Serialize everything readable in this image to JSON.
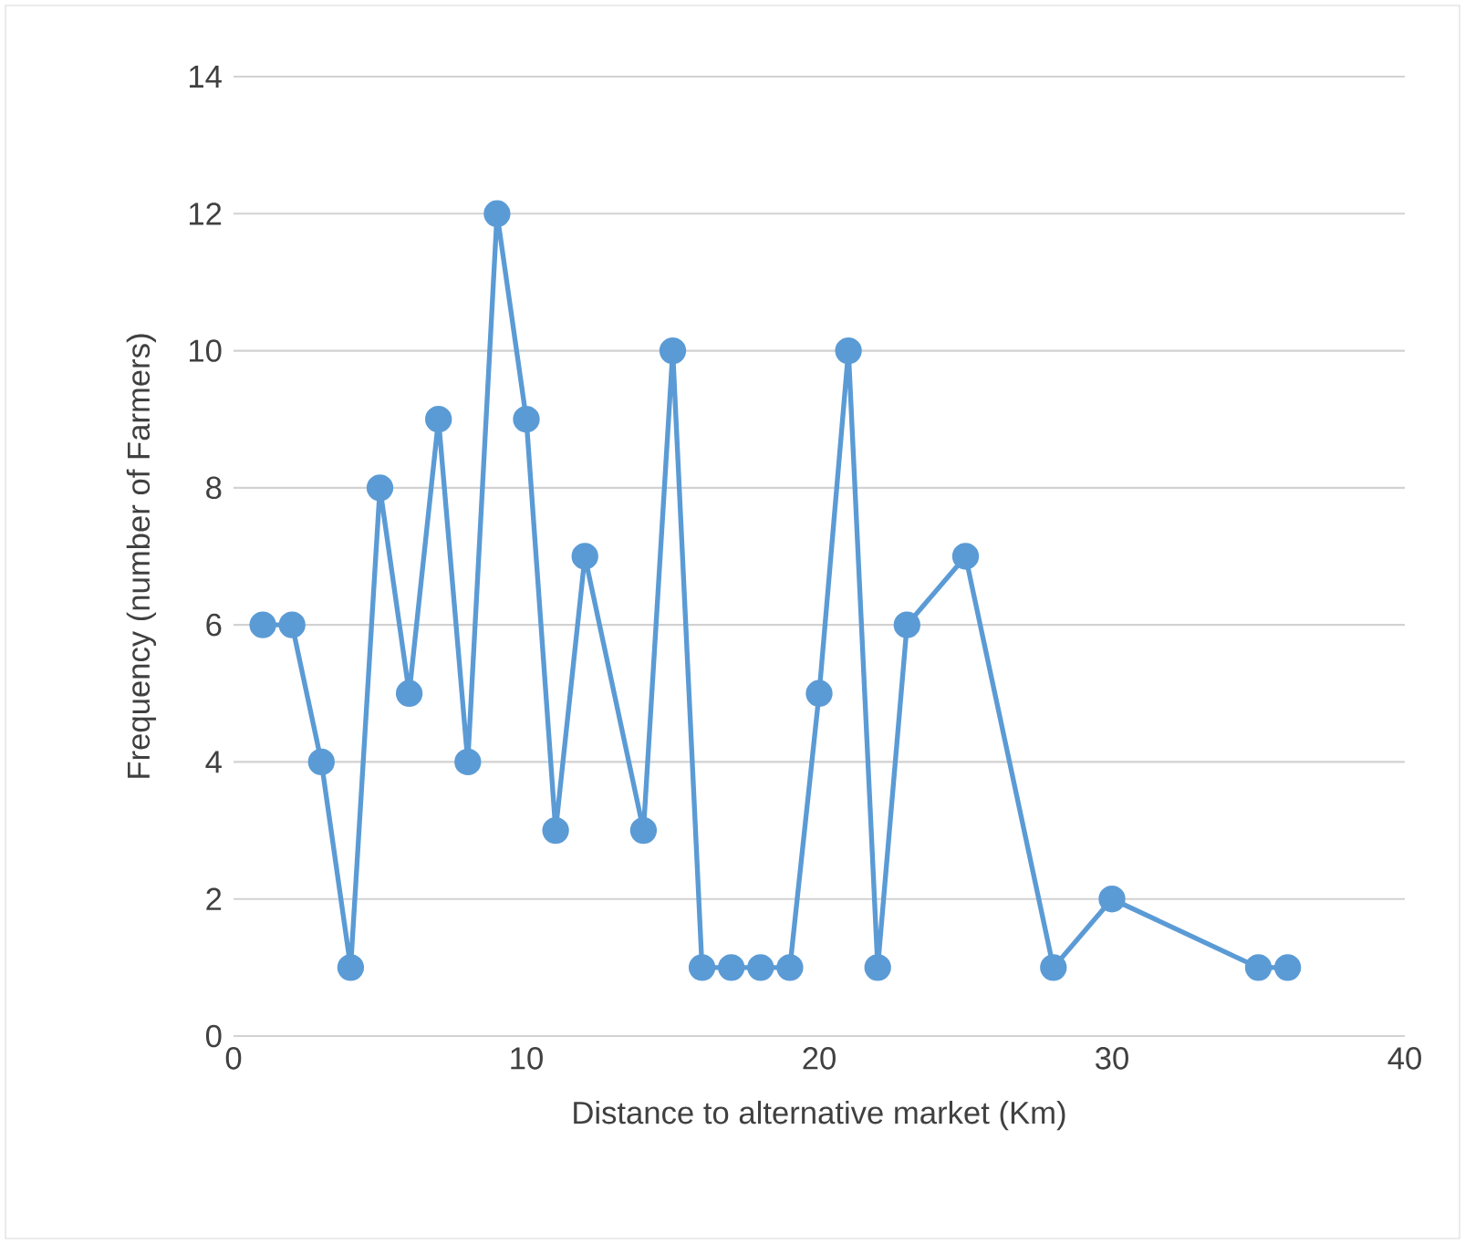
{
  "chart_data": {
    "type": "line",
    "xlabel": "Distance to alternative market (Km)",
    "ylabel": "Frequency (number of Farmers)",
    "x": [
      1,
      2,
      3,
      4,
      5,
      6,
      7,
      8,
      9,
      10,
      11,
      12,
      14,
      15,
      16,
      17,
      18,
      19,
      20,
      21,
      22,
      23,
      25,
      28,
      30,
      35,
      36
    ],
    "series": [
      {
        "color": "#5b9bd5",
        "values": [
          6,
          6,
          4,
          1,
          8,
          5,
          9,
          4,
          12,
          9,
          3,
          7,
          3,
          10,
          1,
          1,
          1,
          1,
          5,
          10,
          1,
          6,
          7,
          1,
          2,
          1,
          1
        ]
      }
    ],
    "xlim": [
      0,
      40
    ],
    "xticks": [
      0,
      10,
      20,
      30,
      40
    ],
    "ylim": [
      0,
      14
    ],
    "yticks": [
      0,
      2,
      4,
      6,
      8,
      10,
      12,
      14
    ],
    "grid": "y",
    "marker": "circle",
    "line_style": "solid"
  }
}
